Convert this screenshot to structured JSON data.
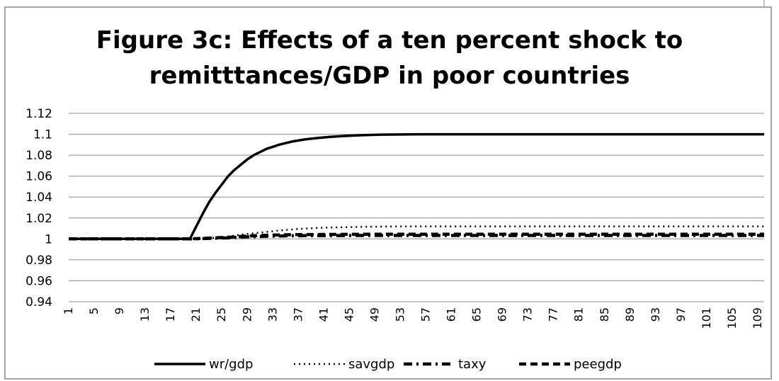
{
  "chart_data": {
    "type": "line",
    "title": [
      "Figure 3c: Effects of a ten percent shock to",
      "remitttances/GDP in poor countries"
    ],
    "xlabel": "",
    "ylabel": "",
    "x_range": [
      1,
      110
    ],
    "x_tick_labels": [
      "1",
      "5",
      "9",
      "13",
      "17",
      "21",
      "25",
      "29",
      "33",
      "37",
      "41",
      "45",
      "49",
      "53",
      "57",
      "61",
      "65",
      "69",
      "73",
      "77",
      "81",
      "85",
      "89",
      "93",
      "97",
      "101",
      "105",
      "109"
    ],
    "ylim": [
      0.94,
      1.12
    ],
    "y_tick_labels": [
      "1.12",
      "1.1",
      "1.08",
      "1.06",
      "1.04",
      "1.02",
      "1",
      "0.98",
      "0.96",
      "0.94"
    ],
    "y_ticks": [
      1.12,
      1.1,
      1.08,
      1.06,
      1.04,
      1.02,
      1,
      0.98,
      0.96,
      0.94
    ],
    "grid": true,
    "legend_position": "bottom",
    "series": [
      {
        "name": "wr/gdp",
        "style": "solid",
        "points": [
          [
            1,
            1
          ],
          [
            20,
            1
          ],
          [
            21,
            1.012
          ],
          [
            22,
            1.024
          ],
          [
            23,
            1.035
          ],
          [
            24,
            1.044
          ],
          [
            25,
            1.052
          ],
          [
            26,
            1.06
          ],
          [
            27,
            1.066
          ],
          [
            28,
            1.071
          ],
          [
            29,
            1.076
          ],
          [
            30,
            1.08
          ],
          [
            31,
            1.083
          ],
          [
            32,
            1.086
          ],
          [
            33,
            1.088
          ],
          [
            34,
            1.09
          ],
          [
            35,
            1.0915
          ],
          [
            36,
            1.093
          ],
          [
            37,
            1.094
          ],
          [
            38,
            1.095
          ],
          [
            39,
            1.0957
          ],
          [
            40,
            1.0964
          ],
          [
            42,
            1.0975
          ],
          [
            44,
            1.0983
          ],
          [
            46,
            1.0989
          ],
          [
            48,
            1.0993
          ],
          [
            50,
            1.0996
          ],
          [
            53,
            1.0998
          ],
          [
            56,
            1.1
          ],
          [
            110,
            1.1
          ]
        ]
      },
      {
        "name": "savgdp",
        "style": "dotted",
        "points": [
          [
            1,
            1
          ],
          [
            20,
            1
          ],
          [
            22,
            1.0005
          ],
          [
            25,
            1.0015
          ],
          [
            28,
            1.004
          ],
          [
            31,
            1.006
          ],
          [
            34,
            1.008
          ],
          [
            37,
            1.0095
          ],
          [
            40,
            1.0105
          ],
          [
            44,
            1.0112
          ],
          [
            48,
            1.0116
          ],
          [
            53,
            1.0119
          ],
          [
            60,
            1.012
          ],
          [
            110,
            1.012
          ]
        ]
      },
      {
        "name": "taxy",
        "style": "dash-dot",
        "points": [
          [
            1,
            1
          ],
          [
            20,
            1
          ],
          [
            23,
            1.0005
          ],
          [
            26,
            1.001
          ],
          [
            29,
            1.002
          ],
          [
            32,
            1.0025
          ],
          [
            36,
            1.003
          ],
          [
            42,
            1.0032
          ],
          [
            50,
            1.0033
          ],
          [
            110,
            1.0033
          ]
        ]
      },
      {
        "name": "peegdp",
        "style": "dashed",
        "points": [
          [
            1,
            1
          ],
          [
            20,
            1
          ],
          [
            23,
            1.0008
          ],
          [
            26,
            1.0015
          ],
          [
            29,
            1.0028
          ],
          [
            32,
            1.0035
          ],
          [
            36,
            1.004
          ],
          [
            42,
            1.0043
          ],
          [
            50,
            1.0045
          ],
          [
            110,
            1.0045
          ]
        ]
      }
    ]
  }
}
